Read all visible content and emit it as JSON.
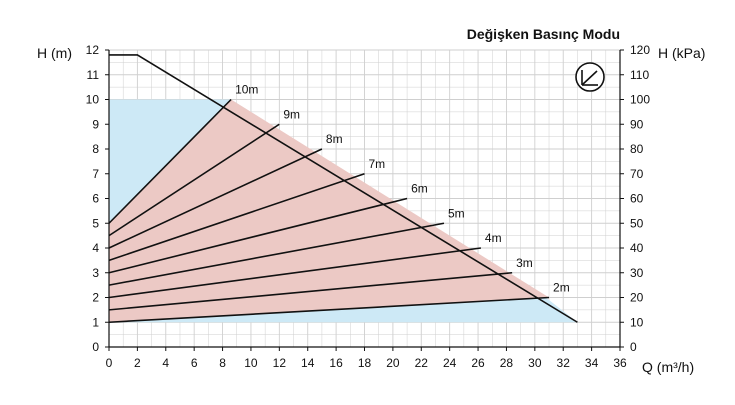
{
  "chart_data": {
    "type": "line",
    "title": "Değişken Basınç Modu",
    "xlabel": "Q (m³/h)",
    "ylabel_left": "H (m)",
    "ylabel_right": "H (kPa)",
    "xlim": [
      0,
      36
    ],
    "ylim": [
      0,
      12
    ],
    "ylim_right": [
      0,
      120
    ],
    "x_ticks": [
      "0",
      "2",
      "4",
      "6",
      "8",
      "10",
      "12",
      "14",
      "16",
      "18",
      "20",
      "22",
      "24",
      "26",
      "28",
      "30",
      "32",
      "34",
      "36"
    ],
    "y_ticks_left": [
      "0",
      "1",
      "2",
      "3",
      "4",
      "5",
      "6",
      "7",
      "8",
      "9",
      "10",
      "11",
      "12"
    ],
    "y_ticks_right": [
      "0",
      "10",
      "20",
      "30",
      "40",
      "50",
      "60",
      "70",
      "80",
      "90",
      "100",
      "110",
      "120"
    ],
    "grid": true,
    "mode_icon": "proportional-pressure-icon",
    "colors": {
      "max_curve_region": "#cde9f6",
      "operating_region": "#ecc9c5",
      "line": "#111111",
      "grid": "#cfcfcf"
    },
    "max_curve": {
      "x": [
        0,
        2,
        33
      ],
      "y": [
        11.8,
        11.8,
        1
      ]
    },
    "light_blue_region": {
      "x": [
        0,
        8.6,
        31,
        33,
        0
      ],
      "y": [
        10,
        10,
        1.9,
        1,
        1
      ]
    },
    "series": [
      {
        "name": "10m",
        "x": [
          0,
          8.6
        ],
        "y": [
          5,
          10
        ]
      },
      {
        "name": "9m",
        "x": [
          0,
          12
        ],
        "y": [
          4.5,
          9
        ]
      },
      {
        "name": "8m",
        "x": [
          0,
          15
        ],
        "y": [
          4,
          8
        ]
      },
      {
        "name": "7m",
        "x": [
          0,
          18
        ],
        "y": [
          3.5,
          7
        ]
      },
      {
        "name": "6m",
        "x": [
          0,
          21
        ],
        "y": [
          3,
          6
        ]
      },
      {
        "name": "5m",
        "x": [
          0,
          23.6
        ],
        "y": [
          2.5,
          5
        ]
      },
      {
        "name": "4m",
        "x": [
          0,
          26.2
        ],
        "y": [
          2,
          4
        ]
      },
      {
        "name": "3m",
        "x": [
          0,
          28.4
        ],
        "y": [
          1.5,
          3
        ]
      },
      {
        "name": "2m",
        "x": [
          0,
          31
        ],
        "y": [
          1,
          2
        ]
      }
    ]
  }
}
